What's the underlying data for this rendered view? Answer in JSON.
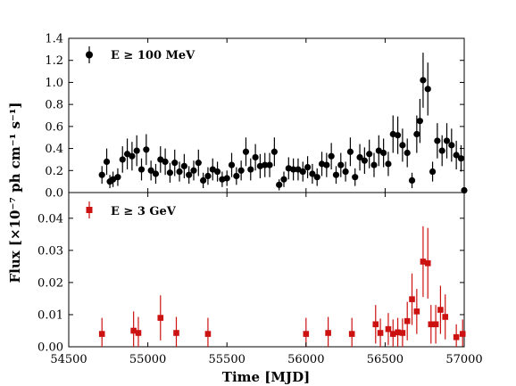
{
  "chart_data": {
    "type": "scatter",
    "x_label": "Time [MJD]",
    "y_label": "Flux [×10⁻⁷ ph cm⁻¹ s⁻¹]",
    "x_range": [
      54500,
      57000
    ],
    "x_ticks": [
      54500,
      55000,
      55500,
      56000,
      56500,
      57000
    ],
    "x_tick_labels": [
      "54500",
      "55000",
      "55500",
      "56000",
      "56500",
      "57000"
    ],
    "panels": [
      {
        "legend_label": "E ≥ 100 MeV",
        "legend_position": "top-left",
        "marker": "circle",
        "color": "#000000",
        "y_range": [
          0,
          1.4
        ],
        "y_ticks": [
          0.0,
          0.2,
          0.4,
          0.6,
          0.8,
          1.0,
          1.2,
          1.4
        ],
        "y_tick_labels": [
          "0.0",
          "0.2",
          "0.4",
          "0.6",
          "0.8",
          "1.0",
          "1.2",
          "1.4"
        ],
        "points": [
          [
            54710,
            0.16,
            0.08
          ],
          [
            54740,
            0.28,
            0.12
          ],
          [
            54760,
            0.1,
            0.06
          ],
          [
            54780,
            0.12,
            0.07
          ],
          [
            54810,
            0.14,
            0.08
          ],
          [
            54840,
            0.3,
            0.12
          ],
          [
            54870,
            0.35,
            0.14
          ],
          [
            54900,
            0.33,
            0.13
          ],
          [
            54930,
            0.38,
            0.14
          ],
          [
            54960,
            0.21,
            0.1
          ],
          [
            54990,
            0.39,
            0.14
          ],
          [
            55020,
            0.2,
            0.09
          ],
          [
            55050,
            0.17,
            0.09
          ],
          [
            55080,
            0.3,
            0.12
          ],
          [
            55110,
            0.28,
            0.12
          ],
          [
            55140,
            0.18,
            0.09
          ],
          [
            55170,
            0.27,
            0.12
          ],
          [
            55200,
            0.19,
            0.09
          ],
          [
            55230,
            0.24,
            0.11
          ],
          [
            55260,
            0.16,
            0.08
          ],
          [
            55290,
            0.2,
            0.09
          ],
          [
            55320,
            0.27,
            0.12
          ],
          [
            55350,
            0.11,
            0.07
          ],
          [
            55380,
            0.15,
            0.08
          ],
          [
            55410,
            0.21,
            0.1
          ],
          [
            55440,
            0.19,
            0.09
          ],
          [
            55470,
            0.12,
            0.07
          ],
          [
            55500,
            0.13,
            0.07
          ],
          [
            55530,
            0.25,
            0.11
          ],
          [
            55560,
            0.15,
            0.08
          ],
          [
            55590,
            0.2,
            0.09
          ],
          [
            55620,
            0.37,
            0.13
          ],
          [
            55650,
            0.21,
            0.1
          ],
          [
            55680,
            0.32,
            0.12
          ],
          [
            55710,
            0.24,
            0.11
          ],
          [
            55740,
            0.25,
            0.11
          ],
          [
            55770,
            0.25,
            0.11
          ],
          [
            55800,
            0.37,
            0.13
          ],
          [
            55830,
            0.07,
            0.05
          ],
          [
            55860,
            0.12,
            0.07
          ],
          [
            55890,
            0.22,
            0.1
          ],
          [
            55920,
            0.21,
            0.1
          ],
          [
            55950,
            0.21,
            0.1
          ],
          [
            55980,
            0.19,
            0.09
          ],
          [
            56010,
            0.23,
            0.1
          ],
          [
            56040,
            0.17,
            0.09
          ],
          [
            56070,
            0.14,
            0.08
          ],
          [
            56100,
            0.26,
            0.11
          ],
          [
            56130,
            0.25,
            0.11
          ],
          [
            56160,
            0.33,
            0.12
          ],
          [
            56190,
            0.16,
            0.08
          ],
          [
            56220,
            0.25,
            0.11
          ],
          [
            56250,
            0.19,
            0.09
          ],
          [
            56280,
            0.37,
            0.13
          ],
          [
            56310,
            0.14,
            0.08
          ],
          [
            56340,
            0.32,
            0.12
          ],
          [
            56370,
            0.29,
            0.12
          ],
          [
            56400,
            0.35,
            0.13
          ],
          [
            56430,
            0.25,
            0.11
          ],
          [
            56460,
            0.38,
            0.14
          ],
          [
            56490,
            0.36,
            0.13
          ],
          [
            56520,
            0.26,
            0.11
          ],
          [
            56550,
            0.53,
            0.17
          ],
          [
            56580,
            0.52,
            0.17
          ],
          [
            56610,
            0.43,
            0.15
          ],
          [
            56640,
            0.36,
            0.13
          ],
          [
            56670,
            0.11,
            0.07
          ],
          [
            56700,
            0.53,
            0.17
          ],
          [
            56720,
            0.65,
            0.2
          ],
          [
            56740,
            1.02,
            0.25
          ],
          [
            56770,
            0.94,
            0.24
          ],
          [
            56800,
            0.19,
            0.09
          ],
          [
            56830,
            0.47,
            0.16
          ],
          [
            56860,
            0.38,
            0.14
          ],
          [
            56890,
            0.47,
            0.16
          ],
          [
            56920,
            0.43,
            0.15
          ],
          [
            56950,
            0.34,
            0.13
          ],
          [
            56980,
            0.31,
            0.12
          ],
          [
            57000,
            0.02,
            0.02
          ]
        ]
      },
      {
        "legend_label": "E ≥ 3 GeV",
        "legend_position": "top-left",
        "marker": "square",
        "color": "#cc1111",
        "y_range": [
          0,
          0.048
        ],
        "y_ticks": [
          0.0,
          0.01,
          0.02,
          0.03,
          0.04
        ],
        "y_tick_labels": [
          "0.00",
          "0.01",
          "0.02",
          "0.03",
          "0.04"
        ],
        "points": [
          [
            54710,
            0.004,
            0.005
          ],
          [
            54910,
            0.005,
            0.006
          ],
          [
            54940,
            0.0043,
            0.005
          ],
          [
            55080,
            0.009,
            0.007
          ],
          [
            55180,
            0.0043,
            0.005
          ],
          [
            55380,
            0.004,
            0.005
          ],
          [
            56000,
            0.004,
            0.005
          ],
          [
            56140,
            0.0043,
            0.005
          ],
          [
            56290,
            0.004,
            0.005
          ],
          [
            56440,
            0.007,
            0.006
          ],
          [
            56470,
            0.0043,
            0.0045
          ],
          [
            56520,
            0.0055,
            0.005
          ],
          [
            56550,
            0.004,
            0.0045
          ],
          [
            56580,
            0.0045,
            0.0045
          ],
          [
            56610,
            0.0043,
            0.0045
          ],
          [
            56640,
            0.008,
            0.006
          ],
          [
            56670,
            0.0148,
            0.008
          ],
          [
            56700,
            0.011,
            0.007
          ],
          [
            56740,
            0.0265,
            0.011
          ],
          [
            56770,
            0.026,
            0.011
          ],
          [
            56790,
            0.007,
            0.006
          ],
          [
            56820,
            0.007,
            0.006
          ],
          [
            56850,
            0.0115,
            0.0075
          ],
          [
            56880,
            0.0093,
            0.007
          ],
          [
            56950,
            0.003,
            0.004
          ],
          [
            56990,
            0.004,
            0.0045
          ]
        ]
      }
    ]
  }
}
